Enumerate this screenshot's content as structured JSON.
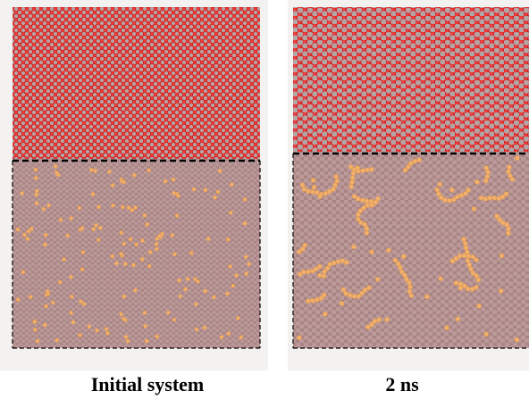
{
  "panels": [
    {
      "caption": "Initial system"
    },
    {
      "caption": "2 ns"
    }
  ],
  "colors": {
    "oxide_red": "#d42a2a",
    "oxide_grey": "#b4a4a4",
    "metal_pink": "#b89494",
    "metal_shade": "#a88484",
    "dopant_orange": "#f2b06a",
    "interface_line": "#000000"
  }
}
